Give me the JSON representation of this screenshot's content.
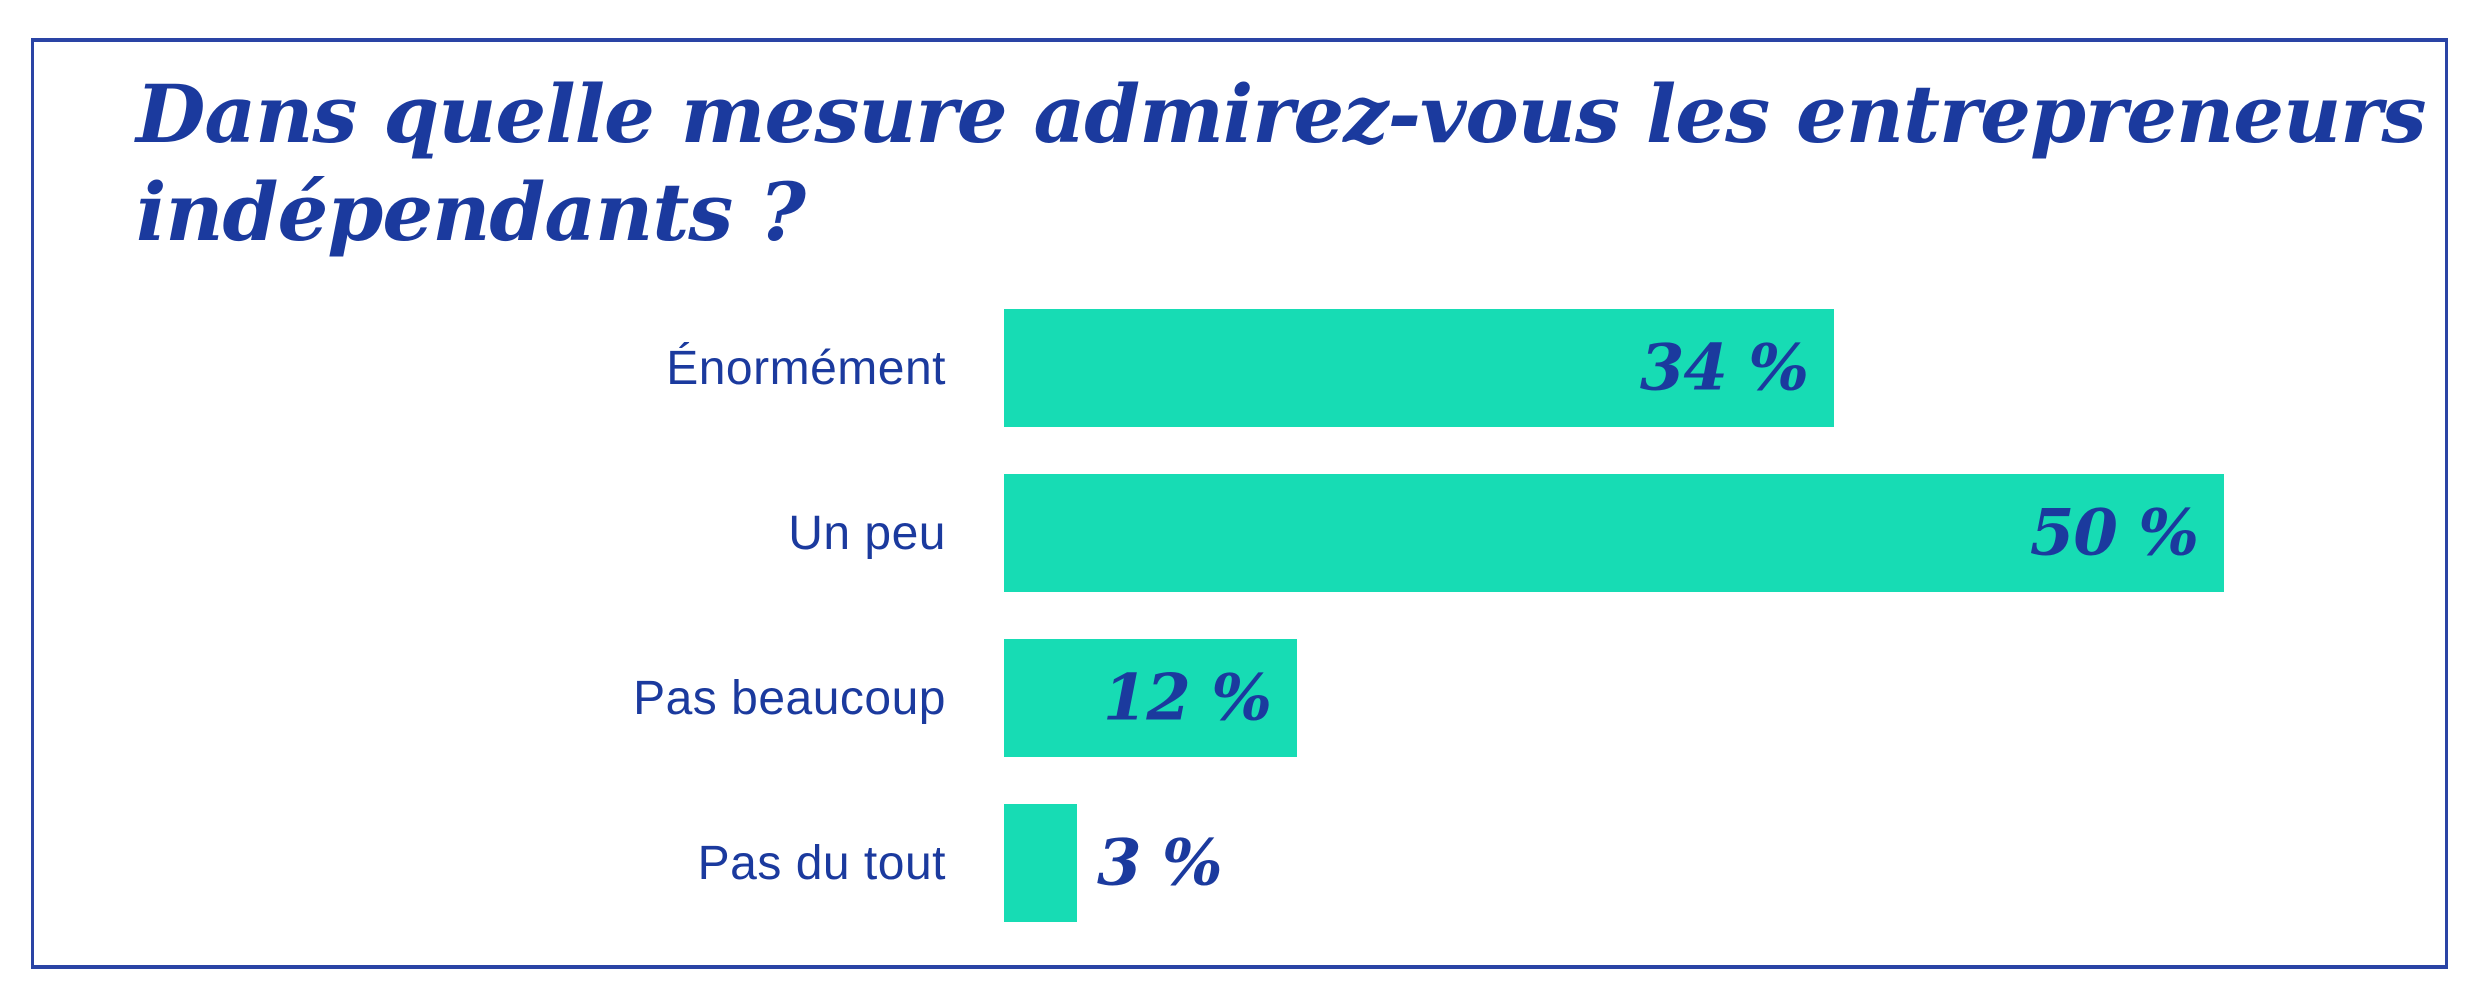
{
  "title": {
    "line1": "Dans quelle mesure admirez-vous les entrepreneurs",
    "line2": "indépendants ?",
    "full_text": "Dans quelle mesure admirez-vous les entrepreneurs indépendants ?"
  },
  "colors": {
    "bar_teal": "#17dcb4",
    "text_navy": "#1b3a9e",
    "frame_blue": "#2a44a5",
    "background": "#ffffff"
  },
  "chart_data": {
    "type": "bar",
    "orientation": "horizontal",
    "title": "Dans quelle mesure admirez-vous les entrepreneurs indépendants ?",
    "categories": [
      "Énormément",
      "Un peu",
      "Pas beaucoup",
      "Pas du tout"
    ],
    "values": [
      34,
      50,
      12,
      3
    ],
    "value_labels": [
      "34 %",
      "50 %",
      "12 %",
      "3 %"
    ],
    "unit": "%",
    "xlim": [
      0,
      50
    ],
    "grid": false,
    "legend": false,
    "value_label_position": "inside-right (outside-right when bar too short)"
  }
}
